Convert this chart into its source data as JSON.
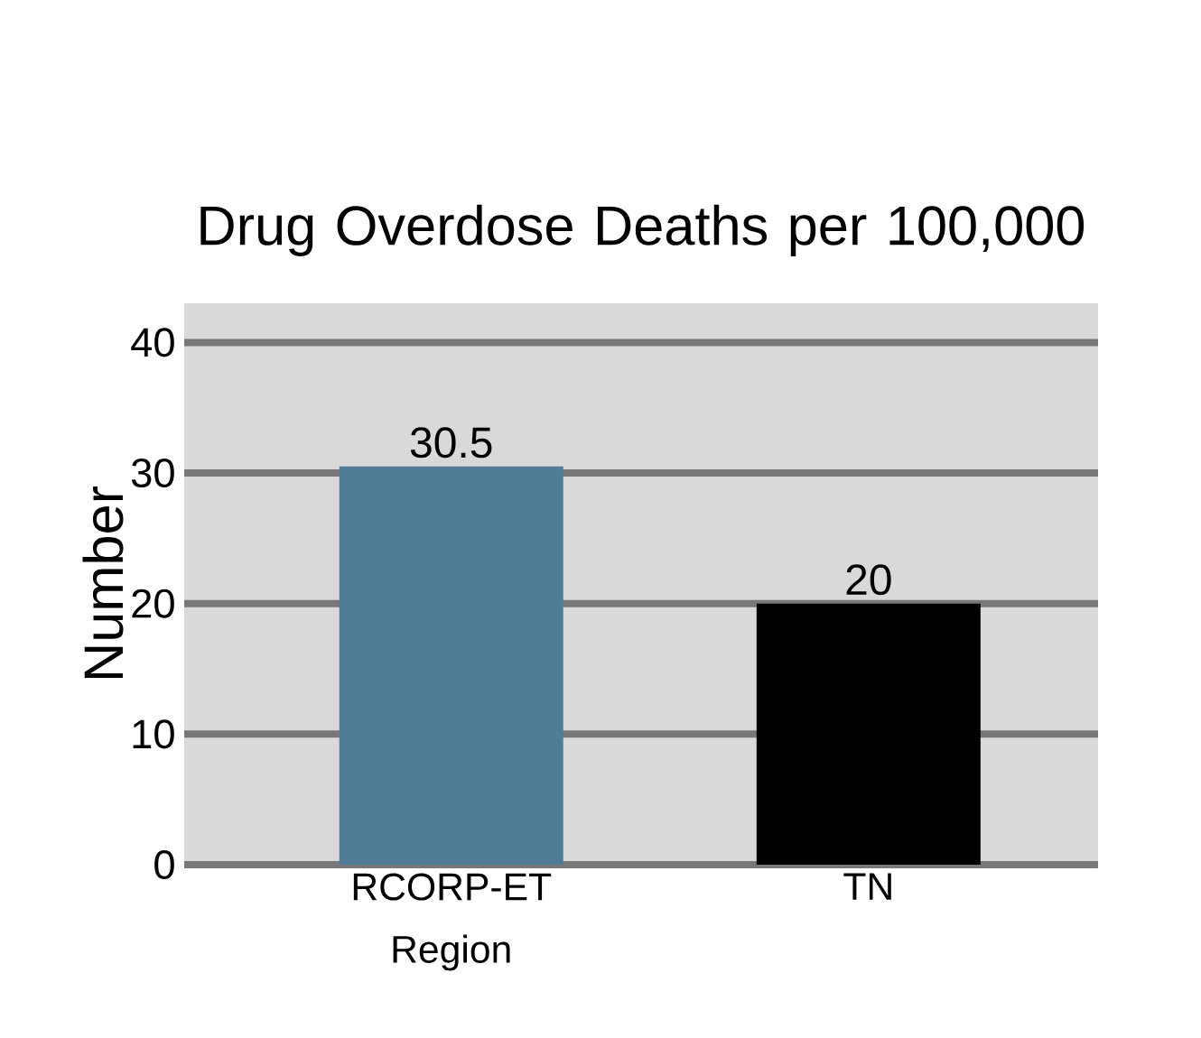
{
  "chart_data": {
    "type": "bar",
    "title": "Drug Overdose Deaths per 100,000",
    "ylabel": "Number",
    "categories": [
      "RCORP-ET Region",
      "TN"
    ],
    "values": [
      30.5,
      20
    ],
    "colors": [
      "#507c96",
      "#000000"
    ],
    "ylim": [
      0,
      43
    ],
    "yticks": [
      0,
      10,
      20,
      30,
      40
    ],
    "grid": "y",
    "data_labels": true
  }
}
